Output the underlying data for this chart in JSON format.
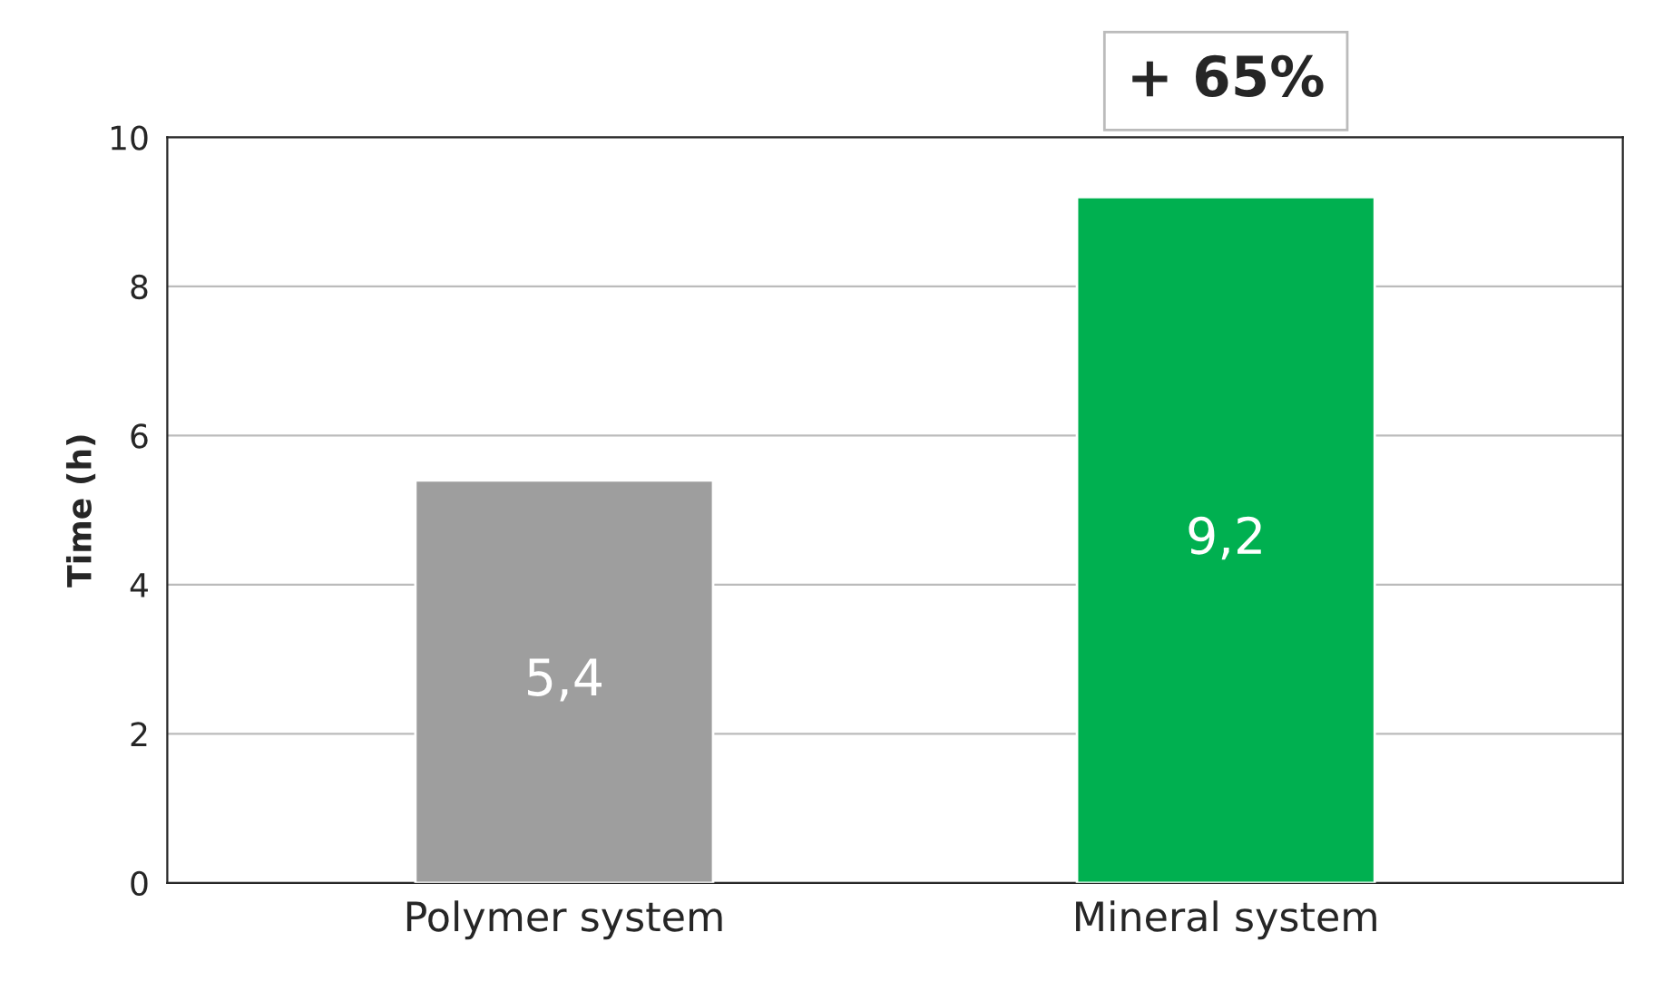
{
  "chart_data": {
    "type": "bar",
    "ylabel": "Time (h)",
    "categories": [
      "Polymer system",
      "Mineral system"
    ],
    "values": [
      5.4,
      9.2
    ],
    "colors": [
      "#9e9e9e",
      "#00b050"
    ],
    "value_labels": [
      "5,4",
      "9,2"
    ],
    "ylim": [
      0,
      10
    ],
    "yticks": [
      0,
      2,
      4,
      6,
      8,
      10
    ],
    "grid": "y",
    "annotations": [
      {
        "text": "+ 65%",
        "x": "Mineral system",
        "y": 9.2
      }
    ]
  }
}
